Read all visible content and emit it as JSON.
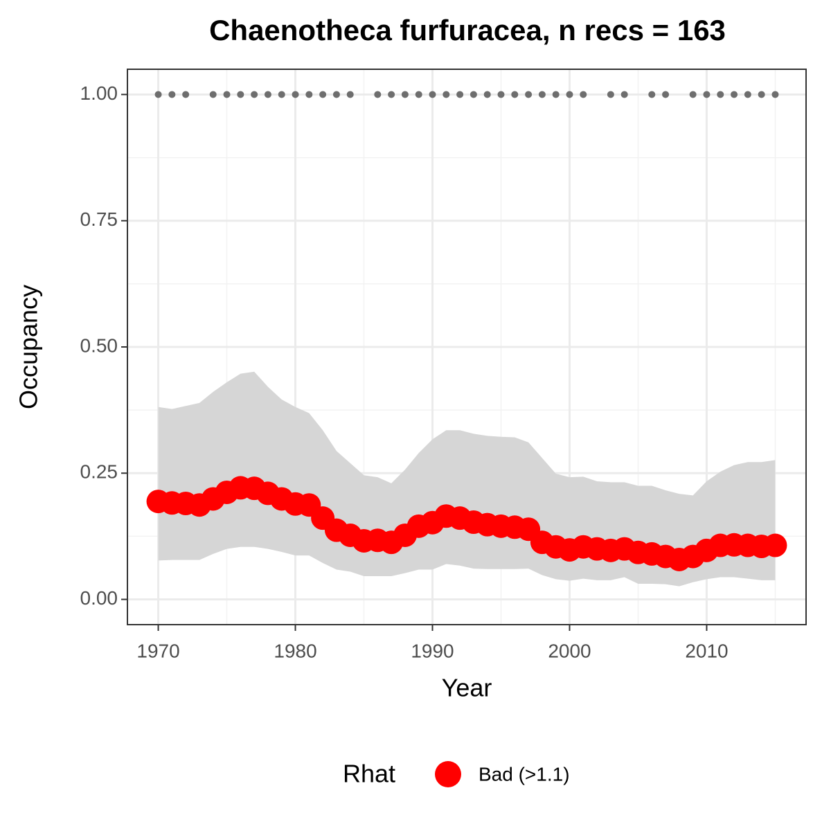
{
  "chart_data": {
    "type": "ribbon_points",
    "title": "Chaenotheca furfuracea, n recs = 163",
    "x_label": "Year",
    "y_label": "Occupancy",
    "legend_title": "Rhat",
    "legend_position": "bottom",
    "xlim": [
      1967.75,
      2017.25
    ],
    "xticks": [
      1970,
      1980,
      1990,
      2000,
      2010
    ],
    "ylim": [
      -0.05,
      1.05
    ],
    "yticks": [
      {
        "value": 0,
        "label": "0.00"
      },
      {
        "value": 0.25,
        "label": "0.25"
      },
      {
        "value": 0.5,
        "label": "0.50"
      },
      {
        "value": 0.75,
        "label": "0.75"
      },
      {
        "value": 1,
        "label": "1.00"
      }
    ],
    "grid": true,
    "series": [
      {
        "name": "Bad (>1.1)",
        "color": "#ff0000",
        "ribbon_color": "#d6d6d6",
        "x": [
          1970,
          1971,
          1972,
          1973,
          1974,
          1975,
          1976,
          1977,
          1978,
          1979,
          1980,
          1981,
          1982,
          1983,
          1984,
          1985,
          1986,
          1987,
          1988,
          1989,
          1990,
          1991,
          1992,
          1993,
          1994,
          1995,
          1996,
          1997,
          1998,
          1999,
          2000,
          2001,
          2002,
          2003,
          2004,
          2005,
          2006,
          2007,
          2008,
          2009,
          2010,
          2011,
          2012,
          2013,
          2014,
          2015
        ],
        "values": [
          0.194,
          0.191,
          0.19,
          0.187,
          0.199,
          0.212,
          0.221,
          0.22,
          0.21,
          0.199,
          0.189,
          0.187,
          0.161,
          0.137,
          0.127,
          0.116,
          0.117,
          0.113,
          0.127,
          0.145,
          0.152,
          0.165,
          0.161,
          0.153,
          0.148,
          0.145,
          0.143,
          0.139,
          0.113,
          0.104,
          0.098,
          0.104,
          0.1,
          0.097,
          0.1,
          0.093,
          0.09,
          0.085,
          0.079,
          0.085,
          0.097,
          0.107,
          0.108,
          0.107,
          0.105,
          0.107
        ],
        "upper": [
          0.381,
          0.377,
          0.383,
          0.389,
          0.411,
          0.43,
          0.447,
          0.451,
          0.421,
          0.396,
          0.381,
          0.369,
          0.335,
          0.294,
          0.27,
          0.246,
          0.242,
          0.23,
          0.257,
          0.29,
          0.317,
          0.335,
          0.335,
          0.328,
          0.324,
          0.322,
          0.321,
          0.311,
          0.28,
          0.249,
          0.242,
          0.243,
          0.234,
          0.232,
          0.232,
          0.225,
          0.225,
          0.216,
          0.209,
          0.206,
          0.234,
          0.253,
          0.266,
          0.272,
          0.272,
          0.276
        ],
        "lower": [
          0.077,
          0.078,
          0.078,
          0.078,
          0.09,
          0.1,
          0.104,
          0.104,
          0.1,
          0.094,
          0.087,
          0.087,
          0.072,
          0.059,
          0.055,
          0.046,
          0.046,
          0.046,
          0.052,
          0.059,
          0.059,
          0.07,
          0.067,
          0.061,
          0.06,
          0.06,
          0.06,
          0.061,
          0.048,
          0.04,
          0.037,
          0.041,
          0.038,
          0.038,
          0.044,
          0.031,
          0.031,
          0.03,
          0.026,
          0.034,
          0.04,
          0.044,
          0.044,
          0.041,
          0.038,
          0.038
        ]
      },
      {
        "color": "#6e6e6e",
        "x": [
          1970,
          1971,
          1972,
          1974,
          1975,
          1976,
          1977,
          1978,
          1979,
          1980,
          1981,
          1982,
          1983,
          1984,
          1986,
          1987,
          1988,
          1989,
          1990,
          1991,
          1992,
          1993,
          1994,
          1995,
          1996,
          1997,
          1998,
          1999,
          2000,
          2001,
          2003,
          2004,
          2006,
          2007,
          2009,
          2010,
          2011,
          2012,
          2013,
          2014,
          2015
        ],
        "values": [
          1,
          1,
          1,
          1,
          1,
          1,
          1,
          1,
          1,
          1,
          1,
          1,
          1,
          1,
          1,
          1,
          1,
          1,
          1,
          1,
          1,
          1,
          1,
          1,
          1,
          1,
          1,
          1,
          1,
          1,
          1,
          1,
          1,
          1,
          1,
          1,
          1,
          1,
          1,
          1,
          1
        ]
      }
    ]
  }
}
